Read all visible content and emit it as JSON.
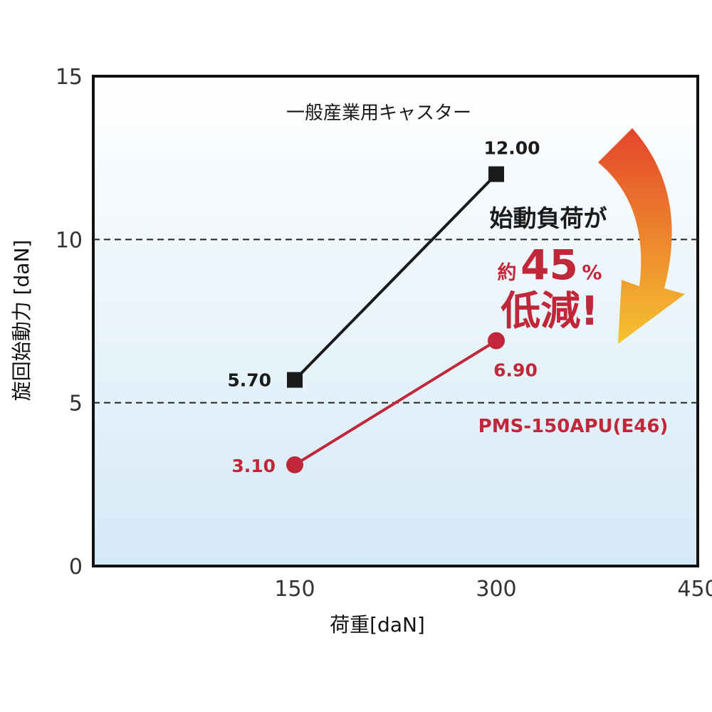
{
  "chart_data": {
    "type": "line",
    "x": [
      150,
      300
    ],
    "xlim": [
      0,
      450
    ],
    "ylim": [
      0,
      15
    ],
    "xticks": [
      150,
      300,
      450
    ],
    "yticks": [
      0,
      5,
      10,
      15
    ],
    "xlabel": "荷重[daN]",
    "ylabel": "旋回始動力 [daN]",
    "grid": "dashed horizontal at 5 and 10",
    "series": [
      {
        "name": "一般産業用キャスター",
        "values": [
          5.7,
          12.0
        ],
        "labels": [
          "5.70",
          "12.00"
        ],
        "color": "#1a1a1a",
        "marker": "square"
      },
      {
        "name": "PMS-150APU(E46)",
        "values": [
          3.1,
          6.9
        ],
        "labels": [
          "3.10",
          "6.90"
        ],
        "color": "#c0283a",
        "marker": "circle"
      }
    ],
    "annotation": {
      "line1": "始動負荷が",
      "prefix": "約",
      "number": "45",
      "unit": "%",
      "line3": "低減!"
    }
  },
  "colors": {
    "bg_top": "#ffffff",
    "bg_bottom": "#d4e9f7",
    "red": "#c0283a",
    "black": "#1a1a1a",
    "arrow_start": "#e4452b",
    "arrow_end": "#f5c430"
  }
}
